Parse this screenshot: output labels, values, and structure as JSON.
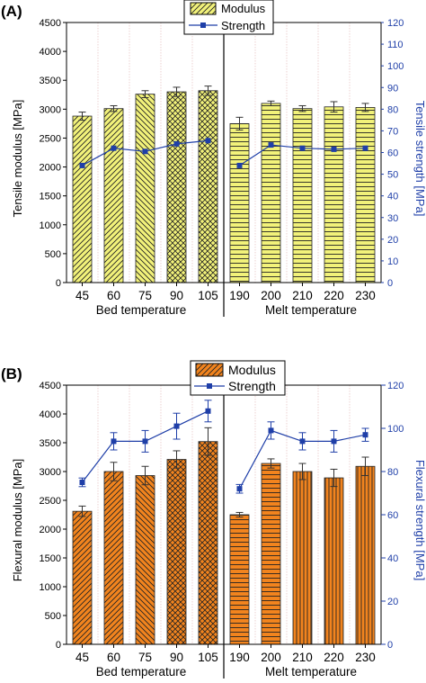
{
  "colors": {
    "modulus_a": "#f2f27a",
    "modulus_b": "#f2841e",
    "hatch": "#222222",
    "strength": "#1f3fa8",
    "axis": "#000000",
    "errorbar": "#333333"
  },
  "chart_data": [
    {
      "type": "bar",
      "panel_label": "(A)",
      "categories": [
        "45",
        "60",
        "75",
        "90",
        "105",
        "190",
        "200",
        "210",
        "220",
        "230"
      ],
      "groups": [
        {
          "label": "Bed temperature",
          "range": [
            0,
            4
          ]
        },
        {
          "label": "Melt temperature",
          "range": [
            5,
            9
          ]
        }
      ],
      "divider_after_index": 4,
      "ylabel": "Tensile modulus [MPa]",
      "ylabel_right": "Tensile strength [MPa]",
      "ylim": [
        0,
        4500
      ],
      "ylim_right": [
        0,
        120
      ],
      "yticks": [
        "0",
        "500",
        "1000",
        "1500",
        "2000",
        "2500",
        "3000",
        "3500",
        "4000",
        "4500"
      ],
      "yticks_right": [
        "0",
        "10",
        "20",
        "30",
        "40",
        "50",
        "60",
        "70",
        "80",
        "90",
        "100",
        "110",
        "120"
      ],
      "series": [
        {
          "name": "Modulus",
          "kind": "bar",
          "values": [
            2880,
            3010,
            3260,
            3300,
            3320,
            2750,
            3100,
            3010,
            3040,
            3030
          ],
          "errors": [
            70,
            50,
            60,
            80,
            80,
            110,
            40,
            50,
            90,
            70
          ],
          "hatches": [
            "fwd",
            "fwd",
            "back",
            "cross",
            "cross",
            "horiz",
            "horiz",
            "horiz",
            "horiz",
            "horiz"
          ]
        },
        {
          "name": "Strength",
          "kind": "line",
          "axis": "right",
          "values": [
            54,
            62,
            60.5,
            64,
            65.5,
            54,
            63.5,
            62,
            61.5,
            62
          ]
        }
      ],
      "grid": false,
      "legend_position": "top-center"
    },
    {
      "type": "bar",
      "panel_label": "(B)",
      "categories": [
        "45",
        "60",
        "75",
        "90",
        "105",
        "190",
        "200",
        "210",
        "220",
        "230"
      ],
      "groups": [
        {
          "label": "Bed temperature",
          "range": [
            0,
            4
          ]
        },
        {
          "label": "Melt temperature",
          "range": [
            5,
            9
          ]
        }
      ],
      "divider_after_index": 4,
      "ylabel": "Flexural modulus [MPa]",
      "ylabel_right": "Flexural strength [MPa]",
      "ylim": [
        0,
        4500
      ],
      "ylim_right": [
        0,
        120
      ],
      "yticks": [
        "0",
        "500",
        "1000",
        "1500",
        "2000",
        "2500",
        "3000",
        "3500",
        "4000",
        "4500"
      ],
      "yticks_right": [
        "0",
        "20",
        "40",
        "60",
        "80",
        "100",
        "120"
      ],
      "series": [
        {
          "name": "Modulus",
          "kind": "bar",
          "values": [
            2310,
            3000,
            2930,
            3210,
            3520,
            2250,
            3140,
            3000,
            2890,
            3090
          ],
          "errors": [
            90,
            160,
            160,
            150,
            240,
            40,
            80,
            140,
            150,
            160
          ],
          "hatches": [
            "fwd",
            "fwd",
            "back",
            "cross",
            "cross",
            "horiz",
            "horiz",
            "vert",
            "vert",
            "vert"
          ]
        },
        {
          "name": "Strength",
          "kind": "line",
          "axis": "right",
          "values": [
            75,
            94,
            94,
            101,
            108,
            72,
            99,
            94,
            94,
            97
          ],
          "errors": [
            2,
            4,
            5,
            6,
            5,
            2,
            4,
            4,
            5,
            3
          ]
        }
      ],
      "grid": false,
      "legend_position": "top-center"
    }
  ]
}
